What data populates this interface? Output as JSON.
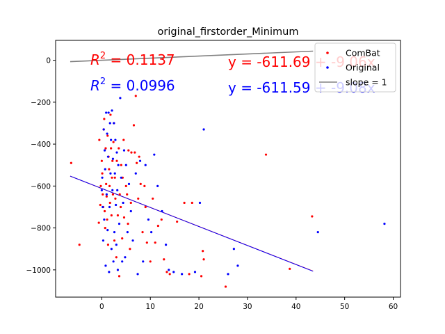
{
  "chart_data": {
    "type": "scatter",
    "title": "original_firstorder_Minimum",
    "xlabel": "",
    "ylabel": "",
    "xlim": [
      -9.5,
      61.5
    ],
    "ylim": [
      -1130,
      95
    ],
    "xticks": [
      0,
      10,
      20,
      30,
      40,
      50,
      60
    ],
    "yticks": [
      0,
      -200,
      -400,
      -600,
      -800,
      -1000
    ],
    "xtick_labels": [
      "0",
      "10",
      "20",
      "30",
      "40",
      "50",
      "60"
    ],
    "ytick_labels": [
      "0",
      "−200",
      "−400",
      "−600",
      "−800",
      "−1000"
    ],
    "grid": false,
    "legend": {
      "placement": "top-right",
      "entries": [
        {
          "label": "ComBat",
          "marker": "dot",
          "color": "#ff0000"
        },
        {
          "label": "Original",
          "marker": "dot",
          "color": "#0000ff"
        },
        {
          "label": "slope = 1",
          "marker": "line",
          "color": "#808080"
        }
      ]
    },
    "annotations": {
      "combat_r2": {
        "prefix": "R",
        "sup": "2",
        "text": " = 0.1137",
        "color": "#ff0000"
      },
      "combat_eq": {
        "text": "y = -611.69 + -9.06x",
        "color": "#ff0000"
      },
      "original_r2": {
        "prefix": "R",
        "sup": "2",
        "text": " = 0.0996",
        "color": "#0000ff"
      },
      "original_eq": {
        "text": "y = -611.59 + -9.08x",
        "color": "#0000ff"
      }
    },
    "reference_line": {
      "name": "slope = 1",
      "x": [
        -6.5,
        43.5
      ],
      "y": [
        -6.5,
        43.5
      ],
      "color": "#808080"
    },
    "series": [
      {
        "name": "ComBat",
        "color": "#ff0000",
        "fit": {
          "intercept": -611.69,
          "slope": -9.06,
          "x_range": [
            -6.5,
            43.5
          ]
        },
        "points": [
          [
            -6.3,
            -490
          ],
          [
            -4.6,
            -880
          ],
          [
            -0.6,
            -775
          ],
          [
            -0.5,
            -380
          ],
          [
            -0.3,
            -690
          ],
          [
            -0.2,
            -600
          ],
          [
            0,
            -480
          ],
          [
            0.1,
            -540
          ],
          [
            0.2,
            -640
          ],
          [
            0.3,
            -700
          ],
          [
            0.4,
            -330
          ],
          [
            0.5,
            -280
          ],
          [
            0.6,
            -720
          ],
          [
            0.7,
            -800
          ],
          [
            0.8,
            -420
          ],
          [
            0.9,
            -590
          ],
          [
            1.0,
            -650
          ],
          [
            1.1,
            -760
          ],
          [
            1.2,
            -360
          ],
          [
            1.3,
            -880
          ],
          [
            1.4,
            -460
          ],
          [
            1.5,
            -520
          ],
          [
            1.6,
            -600
          ],
          [
            1.7,
            -680
          ],
          [
            1.8,
            -260
          ],
          [
            1.9,
            -420
          ],
          [
            2.0,
            -740
          ],
          [
            2.1,
            -560
          ],
          [
            2.2,
            -480
          ],
          [
            2.3,
            -640
          ],
          [
            2.4,
            -390
          ],
          [
            2.5,
            -300
          ],
          [
            2.6,
            -860
          ],
          [
            2.7,
            -560
          ],
          [
            2.8,
            -660
          ],
          [
            3.0,
            -940
          ],
          [
            3.1,
            -480
          ],
          [
            3.3,
            -740
          ],
          [
            3.5,
            -420
          ],
          [
            3.6,
            -1030
          ],
          [
            3.7,
            -640
          ],
          [
            3.9,
            -700
          ],
          [
            4.0,
            -500
          ],
          [
            4.2,
            -850
          ],
          [
            4.3,
            -560
          ],
          [
            4.5,
            -380
          ],
          [
            4.6,
            -750
          ],
          [
            5.0,
            -600
          ],
          [
            5.2,
            -640
          ],
          [
            5.4,
            -780
          ],
          [
            5.5,
            -430
          ],
          [
            5.8,
            -900
          ],
          [
            6.0,
            -680
          ],
          [
            6.1,
            -440
          ],
          [
            6.6,
            -310
          ],
          [
            6.8,
            -440
          ],
          [
            7.0,
            -170
          ],
          [
            7.2,
            -490
          ],
          [
            7.5,
            -660
          ],
          [
            7.7,
            -460
          ],
          [
            8.0,
            -590
          ],
          [
            8.4,
            -820
          ],
          [
            8.8,
            -600
          ],
          [
            9.0,
            -700
          ],
          [
            9.3,
            -870
          ],
          [
            10.0,
            -960
          ],
          [
            10.5,
            -660
          ],
          [
            11.0,
            -870
          ],
          [
            11.6,
            -790
          ],
          [
            12.3,
            -760
          ],
          [
            12.8,
            -950
          ],
          [
            13.4,
            -1010
          ],
          [
            14.0,
            -1020
          ],
          [
            15.5,
            -770
          ],
          [
            17.0,
            -680
          ],
          [
            18.0,
            -1020
          ],
          [
            18.6,
            -680
          ],
          [
            20.5,
            -1030
          ],
          [
            20.8,
            -910
          ],
          [
            21.0,
            -950
          ],
          [
            25.5,
            -1080
          ],
          [
            33.8,
            -450
          ],
          [
            38.7,
            -995
          ],
          [
            43.3,
            -745
          ]
        ]
      },
      {
        "name": "Original",
        "color": "#0000ff",
        "fit": {
          "intercept": -611.59,
          "slope": -9.08,
          "x_range": [
            -6.5,
            43.5
          ]
        },
        "points": [
          [
            0,
            -620
          ],
          [
            0.1,
            -560
          ],
          [
            0.2,
            -700
          ],
          [
            0.3,
            -860
          ],
          [
            0.4,
            -330
          ],
          [
            0.5,
            -760
          ],
          [
            0.6,
            -430
          ],
          [
            0.7,
            -520
          ],
          [
            0.8,
            -980
          ],
          [
            0.9,
            -250
          ],
          [
            1.0,
            -640
          ],
          [
            1.1,
            -350
          ],
          [
            1.2,
            -810
          ],
          [
            1.3,
            -460
          ],
          [
            1.4,
            -250
          ],
          [
            1.5,
            -1010
          ],
          [
            1.6,
            -700
          ],
          [
            1.7,
            -300
          ],
          [
            1.8,
            -540
          ],
          [
            1.9,
            -380
          ],
          [
            2.0,
            -900
          ],
          [
            2.1,
            -240
          ],
          [
            2.2,
            -620
          ],
          [
            2.3,
            -470
          ],
          [
            2.4,
            -960
          ],
          [
            2.5,
            -300
          ],
          [
            2.6,
            -820
          ],
          [
            2.7,
            -540
          ],
          [
            2.8,
            -380
          ],
          [
            2.9,
            -690
          ],
          [
            3.0,
            -880
          ],
          [
            3.1,
            -440
          ],
          [
            3.2,
            -620
          ],
          [
            3.3,
            -1000
          ],
          [
            3.4,
            -500
          ],
          [
            3.6,
            -780
          ],
          [
            3.8,
            -180
          ],
          [
            4.0,
            -560
          ],
          [
            4.2,
            -960
          ],
          [
            4.4,
            -680
          ],
          [
            4.6,
            -430
          ],
          [
            4.8,
            -940
          ],
          [
            5.0,
            -500
          ],
          [
            5.3,
            -820
          ],
          [
            5.6,
            -590
          ],
          [
            6.0,
            -720
          ],
          [
            6.4,
            -860
          ],
          [
            7.0,
            -540
          ],
          [
            7.4,
            -1020
          ],
          [
            7.9,
            -480
          ],
          [
            8.5,
            -960
          ],
          [
            9.0,
            -500
          ],
          [
            9.6,
            -760
          ],
          [
            10.2,
            -820
          ],
          [
            10.8,
            -450
          ],
          [
            11.5,
            -600
          ],
          [
            12.4,
            -720
          ],
          [
            13.2,
            -880
          ],
          [
            13.8,
            -1000
          ],
          [
            14.8,
            -1010
          ],
          [
            16.5,
            -1020
          ],
          [
            19.2,
            -1010
          ],
          [
            20.2,
            -680
          ],
          [
            21.0,
            -330
          ],
          [
            26.0,
            -1020
          ],
          [
            27.2,
            -900
          ],
          [
            28.0,
            -980
          ],
          [
            44.5,
            -820
          ],
          [
            58.2,
            -780
          ]
        ]
      }
    ]
  }
}
